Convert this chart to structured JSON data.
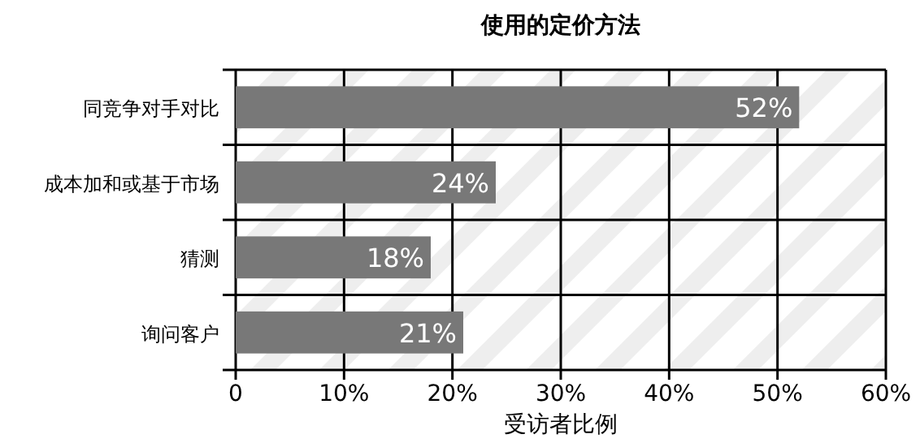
{
  "chart_data": {
    "type": "bar",
    "orientation": "horizontal",
    "title": "使用的定价方法",
    "xlabel": "受访者比例",
    "categories": [
      "同竞争对手对比",
      "成本加和或基于市场",
      "猜测",
      "询问客户"
    ],
    "values": [
      52,
      24,
      18,
      21
    ],
    "value_labels": [
      "52%",
      "24%",
      "18%",
      "21%"
    ],
    "color": "#787878",
    "xlim": [
      0,
      60
    ],
    "xticks": [
      0,
      {
        "value": 10,
        "label": "10%"
      },
      {
        "value": 20,
        "label": "20%"
      },
      {
        "value": 30,
        "label": "30%"
      },
      {
        "value": 40,
        "label": "40%"
      },
      {
        "value": 50,
        "label": "50%"
      },
      {
        "value": 60,
        "label": "60%"
      }
    ],
    "grid": true
  }
}
